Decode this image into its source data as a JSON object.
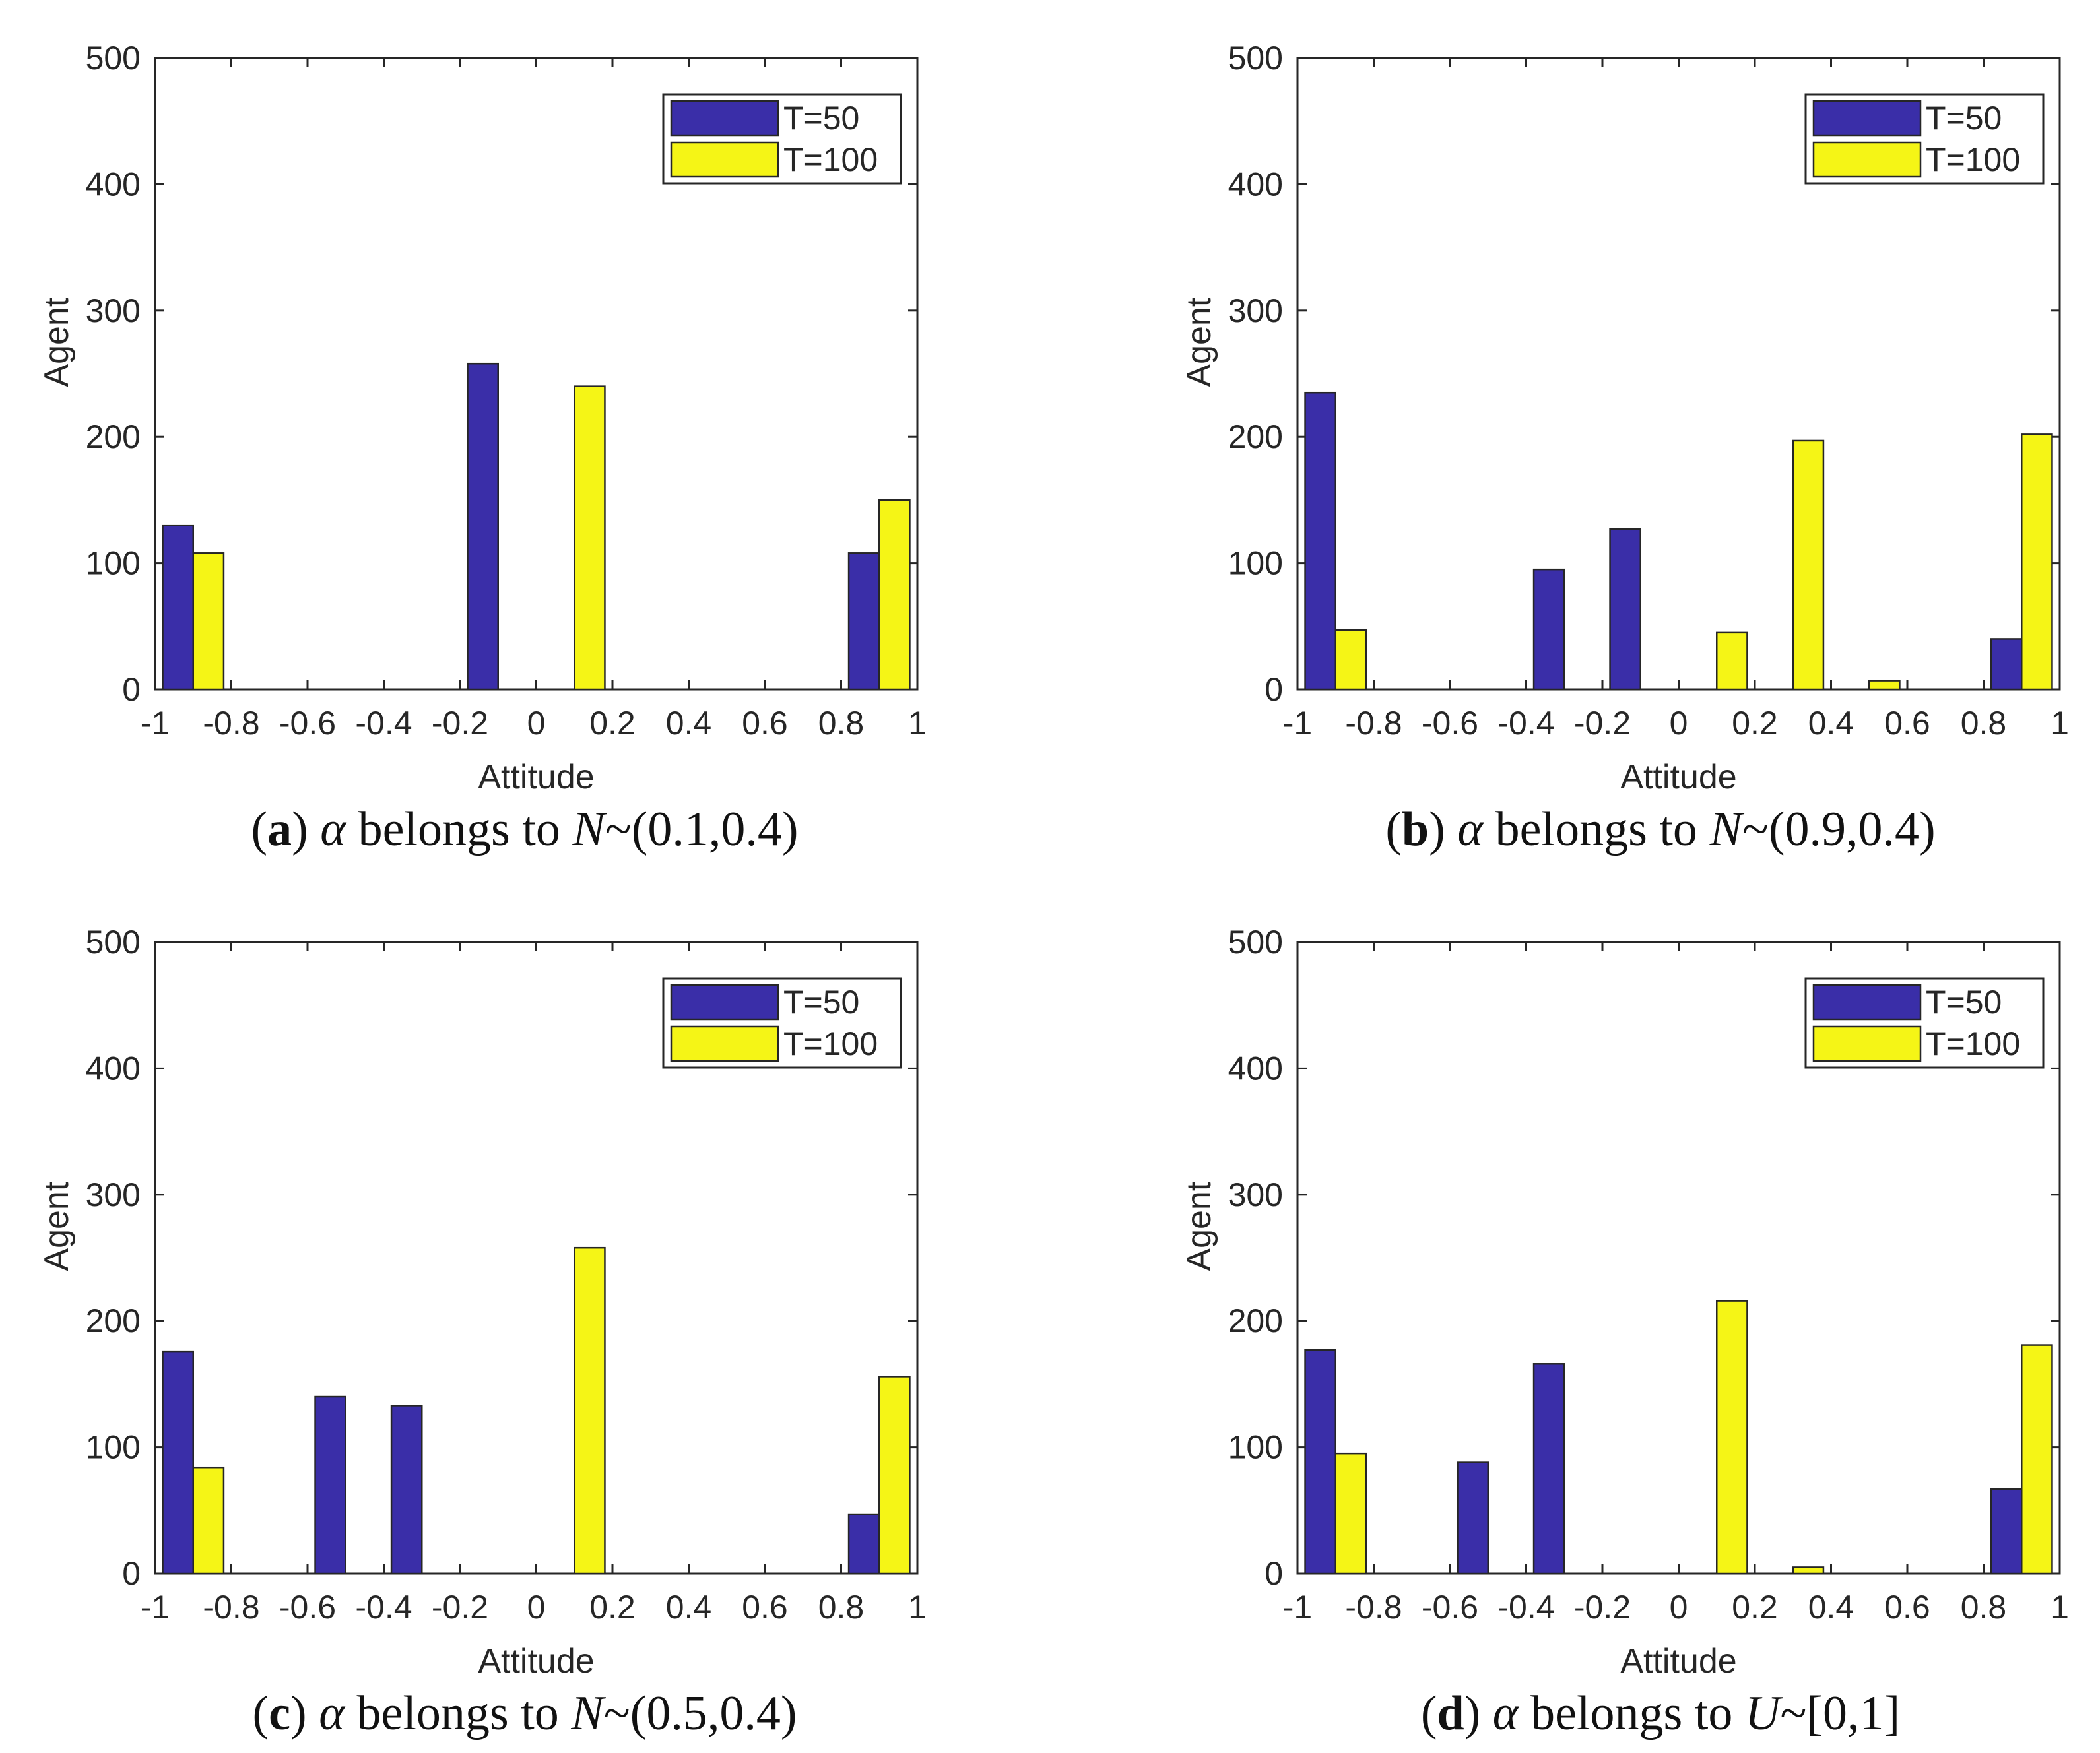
{
  "chart_data": [
    {
      "id": "a",
      "type": "bar",
      "xlabel": "Attitude",
      "ylabel": "Agent",
      "xlim": [
        -1,
        1
      ],
      "ylim": [
        0,
        500
      ],
      "xticks": [
        "-1",
        "-0.8",
        "-0.6",
        "-0.4",
        "-0.2",
        "0",
        "0.2",
        "0.4",
        "0.6",
        "0.8",
        "1"
      ],
      "yticks": [
        "0",
        "100",
        "200",
        "300",
        "400",
        "500"
      ],
      "bin_centers": [
        -0.9,
        -0.7,
        -0.5,
        -0.3,
        -0.1,
        0.1,
        0.3,
        0.5,
        0.7,
        0.9
      ],
      "series": [
        {
          "name": "T=50",
          "color": "#3a2ea8",
          "values": [
            130,
            0,
            0,
            0,
            258,
            0,
            0,
            0,
            0,
            108
          ]
        },
        {
          "name": "T=100",
          "color": "#f5f516",
          "values": [
            108,
            0,
            0,
            0,
            0,
            240,
            0,
            0,
            0,
            150
          ]
        }
      ],
      "legend": [
        "T=50",
        "T=100"
      ],
      "caption": {
        "label": "a",
        "symbol": "α",
        "text": "belongs to",
        "dist": "N",
        "params": "~(0.1,0.4)"
      }
    },
    {
      "id": "b",
      "type": "bar",
      "xlabel": "Attitude",
      "ylabel": "Agent",
      "xlim": [
        -1,
        1
      ],
      "ylim": [
        0,
        500
      ],
      "xticks": [
        "-1",
        "-0.8",
        "-0.6",
        "-0.4",
        "-0.2",
        "0",
        "0.2",
        "0.4",
        "0.6",
        "0.8",
        "1"
      ],
      "yticks": [
        "0",
        "100",
        "200",
        "300",
        "400",
        "500"
      ],
      "bin_centers": [
        -0.9,
        -0.7,
        -0.5,
        -0.3,
        -0.1,
        0.1,
        0.3,
        0.5,
        0.7,
        0.9
      ],
      "series": [
        {
          "name": "T=50",
          "color": "#3a2ea8",
          "values": [
            235,
            0,
            0,
            95,
            127,
            0,
            0,
            0,
            0,
            40
          ]
        },
        {
          "name": "T=100",
          "color": "#f5f516",
          "values": [
            47,
            0,
            0,
            0,
            0,
            45,
            197,
            7,
            0,
            202
          ]
        }
      ],
      "legend": [
        "T=50",
        "T=100"
      ],
      "caption": {
        "label": "b",
        "symbol": "α",
        "text": "belongs to",
        "dist": "N",
        "params": "~(0.9,0.4)"
      }
    },
    {
      "id": "c",
      "type": "bar",
      "xlabel": "Attitude",
      "ylabel": "Agent",
      "xlim": [
        -1,
        1
      ],
      "ylim": [
        0,
        500
      ],
      "xticks": [
        "-1",
        "-0.8",
        "-0.6",
        "-0.4",
        "-0.2",
        "0",
        "0.2",
        "0.4",
        "0.6",
        "0.8",
        "1"
      ],
      "yticks": [
        "0",
        "100",
        "200",
        "300",
        "400",
        "500"
      ],
      "bin_centers": [
        -0.9,
        -0.7,
        -0.5,
        -0.3,
        -0.1,
        0.1,
        0.3,
        0.5,
        0.7,
        0.9
      ],
      "series": [
        {
          "name": "T=50",
          "color": "#3a2ea8",
          "values": [
            176,
            0,
            140,
            133,
            0,
            0,
            0,
            0,
            0,
            47
          ]
        },
        {
          "name": "T=100",
          "color": "#f5f516",
          "values": [
            84,
            0,
            0,
            0,
            0,
            258,
            0,
            0,
            0,
            156
          ]
        }
      ],
      "legend": [
        "T=50",
        "T=100"
      ],
      "caption": {
        "label": "c",
        "symbol": "α",
        "text": "belongs to",
        "dist": "N",
        "params": "~(0.5,0.4)"
      }
    },
    {
      "id": "d",
      "type": "bar",
      "xlabel": "Attitude",
      "ylabel": "Agent",
      "xlim": [
        -1,
        1
      ],
      "ylim": [
        0,
        500
      ],
      "xticks": [
        "-1",
        "-0.8",
        "-0.6",
        "-0.4",
        "-0.2",
        "0",
        "0.2",
        "0.4",
        "0.6",
        "0.8",
        "1"
      ],
      "yticks": [
        "0",
        "100",
        "200",
        "300",
        "400",
        "500"
      ],
      "bin_centers": [
        -0.9,
        -0.7,
        -0.5,
        -0.3,
        -0.1,
        0.1,
        0.3,
        0.5,
        0.7,
        0.9
      ],
      "series": [
        {
          "name": "T=50",
          "color": "#3a2ea8",
          "values": [
            177,
            0,
            88,
            166,
            0,
            0,
            0,
            0,
            0,
            67
          ]
        },
        {
          "name": "T=100",
          "color": "#f5f516",
          "values": [
            95,
            0,
            0,
            0,
            0,
            216,
            5,
            0,
            0,
            181
          ]
        }
      ],
      "legend": [
        "T=50",
        "T=100"
      ],
      "caption": {
        "label": "d",
        "symbol": "α",
        "text": "belongs to",
        "dist": "U",
        "params": "~[0,1]"
      }
    }
  ]
}
